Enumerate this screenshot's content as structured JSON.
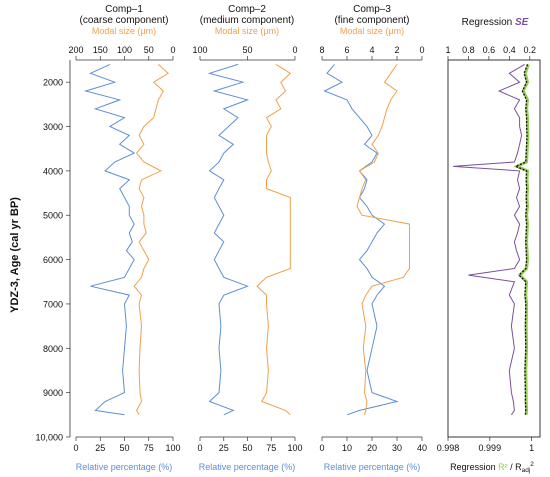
{
  "colors": {
    "blue": "#5b8fd6",
    "orange": "#f0a04b",
    "purple": "#7b4fa0",
    "green": "#9acd5a",
    "black": "#111111",
    "axis": "#333333"
  },
  "y_axis": {
    "label": "YDZ-3, Age (cal yr BP)",
    "ticks": [
      "2000",
      "3000",
      "4000",
      "5000",
      "6000",
      "7000",
      "8000",
      "9000",
      "10,000"
    ],
    "tick_values": [
      2000,
      3000,
      4000,
      5000,
      6000,
      7000,
      8000,
      9000,
      10000
    ],
    "range": [
      1500,
      10000
    ]
  },
  "chart_data": [
    {
      "type": "line",
      "title_line1": "Comp–1",
      "title_line2": "(coarse component)",
      "top_axis": {
        "label": "Modal size (μm)",
        "ticks": [
          "200",
          "150",
          "100",
          "50",
          "0"
        ],
        "tick_values": [
          200,
          150,
          100,
          50,
          0
        ],
        "range": [
          200,
          0
        ]
      },
      "bottom_axis": {
        "label": "Relative percentage (%)",
        "ticks": [
          "0",
          "25",
          "50",
          "75",
          "100"
        ],
        "tick_values": [
          0,
          25,
          50,
          75,
          100
        ],
        "range": [
          0,
          100
        ]
      },
      "series": [
        {
          "axis": "bottom",
          "color": "blue",
          "y": [
            1600,
            1800,
            2000,
            2200,
            2400,
            2600,
            2800,
            3000,
            3200,
            3400,
            3600,
            3800,
            4000,
            4200,
            4400,
            4600,
            4800,
            5000,
            5200,
            5400,
            5600,
            5800,
            6000,
            6200,
            6400,
            6600,
            6800,
            7000,
            7500,
            8000,
            8500,
            9000,
            9200,
            9400,
            9500
          ],
          "x": [
            35,
            15,
            40,
            10,
            45,
            20,
            50,
            35,
            55,
            45,
            60,
            40,
            30,
            55,
            45,
            50,
            55,
            55,
            60,
            55,
            58,
            52,
            60,
            55,
            50,
            15,
            55,
            50,
            52,
            50,
            48,
            50,
            30,
            20,
            50
          ]
        },
        {
          "axis": "top",
          "color": "orange",
          "y": [
            1600,
            1800,
            2000,
            2200,
            2400,
            2600,
            2800,
            3000,
            3200,
            3400,
            3600,
            3800,
            4000,
            4200,
            4400,
            4600,
            4800,
            5000,
            5200,
            5400,
            5600,
            5800,
            6000,
            6200,
            6400,
            6600,
            6800,
            7000,
            7500,
            8000,
            8500,
            9000,
            9200,
            9400,
            9500
          ],
          "x": [
            30,
            10,
            40,
            20,
            30,
            35,
            40,
            60,
            70,
            60,
            75,
            60,
            25,
            65,
            70,
            60,
            65,
            60,
            60,
            55,
            70,
            60,
            50,
            60,
            65,
            80,
            65,
            70,
            65,
            68,
            70,
            68,
            65,
            75,
            70
          ]
        }
      ]
    },
    {
      "type": "line",
      "title_line1": "Comp–2",
      "title_line2": "(medium component)",
      "top_axis": {
        "label": "Modal size (μm)",
        "ticks": [
          "100",
          "50",
          "0"
        ],
        "tick_values": [
          100,
          50,
          0
        ],
        "range": [
          100,
          0
        ]
      },
      "bottom_axis": {
        "label": "Relative percentage (%)",
        "ticks": [
          "0",
          "25",
          "50",
          "75",
          "100"
        ],
        "tick_values": [
          0,
          25,
          50,
          75,
          100
        ],
        "range": [
          0,
          100
        ]
      },
      "series": [
        {
          "axis": "bottom",
          "color": "blue",
          "y": [
            1600,
            1800,
            2000,
            2200,
            2400,
            2600,
            2800,
            3000,
            3200,
            3400,
            3600,
            3800,
            4000,
            4200,
            4400,
            4600,
            4800,
            5000,
            5200,
            5400,
            5600,
            5800,
            6000,
            6200,
            6400,
            6600,
            6800,
            7000,
            7500,
            8000,
            8500,
            9000,
            9200,
            9400,
            9500
          ],
          "x": [
            40,
            10,
            45,
            15,
            50,
            25,
            40,
            30,
            20,
            35,
            25,
            20,
            10,
            25,
            20,
            15,
            20,
            25,
            20,
            15,
            25,
            20,
            15,
            20,
            25,
            50,
            25,
            20,
            22,
            20,
            22,
            20,
            10,
            35,
            25
          ]
        },
        {
          "axis": "top",
          "color": "orange",
          "y": [
            1600,
            1800,
            2000,
            2200,
            2400,
            2600,
            2800,
            3000,
            3200,
            3400,
            3600,
            3800,
            4000,
            4200,
            4400,
            4600,
            4800,
            5000,
            5200,
            5400,
            5600,
            5800,
            6000,
            6200,
            6400,
            6600,
            6800,
            7000,
            7500,
            8000,
            8500,
            9000,
            9200,
            9400,
            9500
          ],
          "x": [
            20,
            5,
            15,
            10,
            20,
            15,
            30,
            25,
            30,
            30,
            30,
            28,
            25,
            30,
            30,
            5,
            5,
            5,
            5,
            5,
            5,
            5,
            5,
            5,
            30,
            40,
            30,
            30,
            28,
            30,
            28,
            30,
            35,
            10,
            5
          ]
        }
      ]
    },
    {
      "type": "line",
      "title_line1": "Comp–3",
      "title_line2": "(fine component)",
      "top_axis": {
        "label": "Modal size (μm)",
        "ticks": [
          "8",
          "6",
          "4",
          "2",
          "0"
        ],
        "tick_values": [
          8,
          6,
          4,
          2,
          0
        ],
        "range": [
          8,
          0
        ]
      },
      "bottom_axis": {
        "label": "Relative percentage (%)",
        "ticks": [
          "0",
          "10",
          "20",
          "30",
          "40"
        ],
        "tick_values": [
          0,
          10,
          20,
          30,
          40
        ],
        "range": [
          0,
          40
        ]
      },
      "series": [
        {
          "axis": "bottom",
          "color": "blue",
          "y": [
            1600,
            1800,
            2000,
            2200,
            2400,
            2600,
            2800,
            3000,
            3200,
            3400,
            3600,
            3800,
            4000,
            4200,
            4400,
            4600,
            4800,
            5000,
            5200,
            5400,
            5600,
            5800,
            6000,
            6200,
            6400,
            6600,
            6800,
            7000,
            7500,
            8000,
            8500,
            9000,
            9200,
            9400,
            9500
          ],
          "x": [
            5,
            2,
            8,
            1,
            10,
            12,
            15,
            18,
            20,
            17,
            22,
            20,
            15,
            18,
            17,
            15,
            18,
            20,
            25,
            22,
            20,
            18,
            15,
            18,
            20,
            25,
            22,
            20,
            22,
            20,
            18,
            20,
            30,
            15,
            10
          ]
        },
        {
          "axis": "top",
          "color": "orange",
          "y": [
            1600,
            1800,
            2000,
            2200,
            2400,
            2600,
            2800,
            3000,
            3200,
            3400,
            3600,
            3800,
            4000,
            4200,
            4400,
            4600,
            4800,
            5000,
            5200,
            5400,
            5600,
            5800,
            6000,
            6200,
            6400,
            6600,
            6800,
            7000,
            7500,
            8000,
            8500,
            9000,
            9200,
            9400,
            9500
          ],
          "x": [
            2,
            2.5,
            3,
            2,
            2.5,
            2.8,
            3,
            3.2,
            3.5,
            4,
            3.5,
            3.8,
            5,
            4.5,
            4.8,
            5,
            5.2,
            4.8,
            1,
            1,
            1,
            1,
            1,
            1,
            1.5,
            4,
            4.5,
            4.8,
            4.5,
            4.7,
            4.5,
            4.6,
            4.4,
            4.5,
            4.6
          ]
        }
      ]
    },
    {
      "type": "line",
      "title_prefix": "Regression ",
      "title_emph": "SE",
      "top_axis": {
        "ticks": [
          "1",
          "0.8",
          "0.6",
          "0.4",
          "0.2"
        ],
        "tick_values": [
          1,
          0.8,
          0.6,
          0.4,
          0.2
        ],
        "range": [
          1,
          0.1
        ]
      },
      "bottom_axis": {
        "label_prefix": "Regression ",
        "label_r2": "R²",
        "label_sep": " / R",
        "label_sub": "adj",
        "label_sup": "2",
        "ticks": [
          "0.998",
          "0.999",
          "1"
        ],
        "tick_values": [
          0.998,
          0.999,
          1
        ],
        "range": [
          0.998,
          1.0002
        ]
      },
      "series": [
        {
          "axis": "top",
          "color": "purple",
          "y": [
            1600,
            1800,
            2000,
            2200,
            2400,
            2600,
            2800,
            3000,
            3200,
            3400,
            3600,
            3800,
            3900,
            4000,
            4200,
            4400,
            4600,
            4800,
            5000,
            5200,
            5400,
            5600,
            5800,
            6000,
            6200,
            6350,
            6500,
            6800,
            7000,
            7500,
            8000,
            8500,
            9000,
            9200,
            9400,
            9500
          ],
          "x": [
            0.25,
            0.4,
            0.3,
            0.5,
            0.3,
            0.35,
            0.3,
            0.3,
            0.28,
            0.3,
            0.32,
            0.35,
            0.95,
            0.3,
            0.32,
            0.3,
            0.33,
            0.3,
            0.35,
            0.3,
            0.32,
            0.35,
            0.33,
            0.3,
            0.35,
            0.8,
            0.35,
            0.4,
            0.35,
            0.38,
            0.35,
            0.4,
            0.38,
            0.36,
            0.35,
            0.38
          ]
        },
        {
          "axis": "bottom",
          "color": "green",
          "y": [
            1600,
            1800,
            2000,
            2200,
            2400,
            2600,
            2800,
            3000,
            3200,
            3400,
            3600,
            3800,
            3900,
            4000,
            4200,
            4400,
            4600,
            4800,
            5000,
            5200,
            5400,
            5600,
            5800,
            6000,
            6200,
            6350,
            6500,
            6800,
            7000,
            7500,
            8000,
            8500,
            9000,
            9200,
            9400,
            9500
          ],
          "x": [
            0.99992,
            0.99985,
            0.9999,
            0.9998,
            0.9999,
            0.99988,
            0.9999,
            0.9999,
            0.99991,
            0.9999,
            0.99989,
            0.99988,
            0.99965,
            0.9999,
            0.99989,
            0.9999,
            0.99989,
            0.9999,
            0.99988,
            0.9999,
            0.99989,
            0.99988,
            0.99989,
            0.9999,
            0.99988,
            0.99972,
            0.99988,
            0.99986,
            0.99988,
            0.99987,
            0.99988,
            0.99986,
            0.99987,
            0.99987,
            0.99988,
            0.99987
          ]
        },
        {
          "axis": "bottom",
          "color": "black",
          "dash": true,
          "y": [
            1600,
            1800,
            2000,
            2200,
            2400,
            2600,
            2800,
            3000,
            3200,
            3400,
            3600,
            3800,
            3900,
            4000,
            4200,
            4400,
            4600,
            4800,
            5000,
            5200,
            5400,
            5600,
            5800,
            6000,
            6200,
            6350,
            6500,
            6800,
            7000,
            7500,
            8000,
            8500,
            9000,
            9200,
            9400,
            9500
          ],
          "x": [
            0.9999,
            0.99982,
            0.99988,
            0.99978,
            0.99988,
            0.99986,
            0.99988,
            0.99988,
            0.99989,
            0.99988,
            0.99987,
            0.99986,
            0.99962,
            0.99988,
            0.99987,
            0.99988,
            0.99987,
            0.99988,
            0.99986,
            0.99988,
            0.99987,
            0.99986,
            0.99987,
            0.99988,
            0.99986,
            0.9997,
            0.99986,
            0.99984,
            0.99986,
            0.99985,
            0.99986,
            0.99984,
            0.99985,
            0.99985,
            0.99986,
            0.99985
          ]
        }
      ]
    }
  ]
}
